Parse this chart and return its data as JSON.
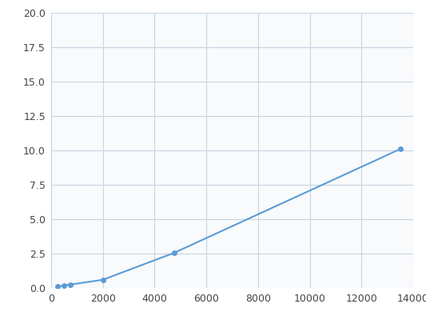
{
  "x": [
    250,
    500,
    750,
    2000,
    4750,
    13500
  ],
  "y": [
    0.1,
    0.2,
    0.25,
    0.6,
    2.55,
    10.1
  ],
  "line_color": "#5b9bd5",
  "marker_color": "#5b9bd5",
  "marker_size": 5,
  "xlim": [
    0,
    14000
  ],
  "ylim": [
    0,
    20
  ],
  "xticks": [
    0,
    2000,
    4000,
    6000,
    8000,
    10000,
    12000,
    14000
  ],
  "yticks": [
    0.0,
    2.5,
    5.0,
    7.5,
    10.0,
    12.5,
    15.0,
    17.5,
    20.0
  ],
  "grid_color": "#c8d4e0",
  "bg_color": "#f8fafc",
  "fig_bg_color": "#ffffff",
  "linewidth": 1.5
}
